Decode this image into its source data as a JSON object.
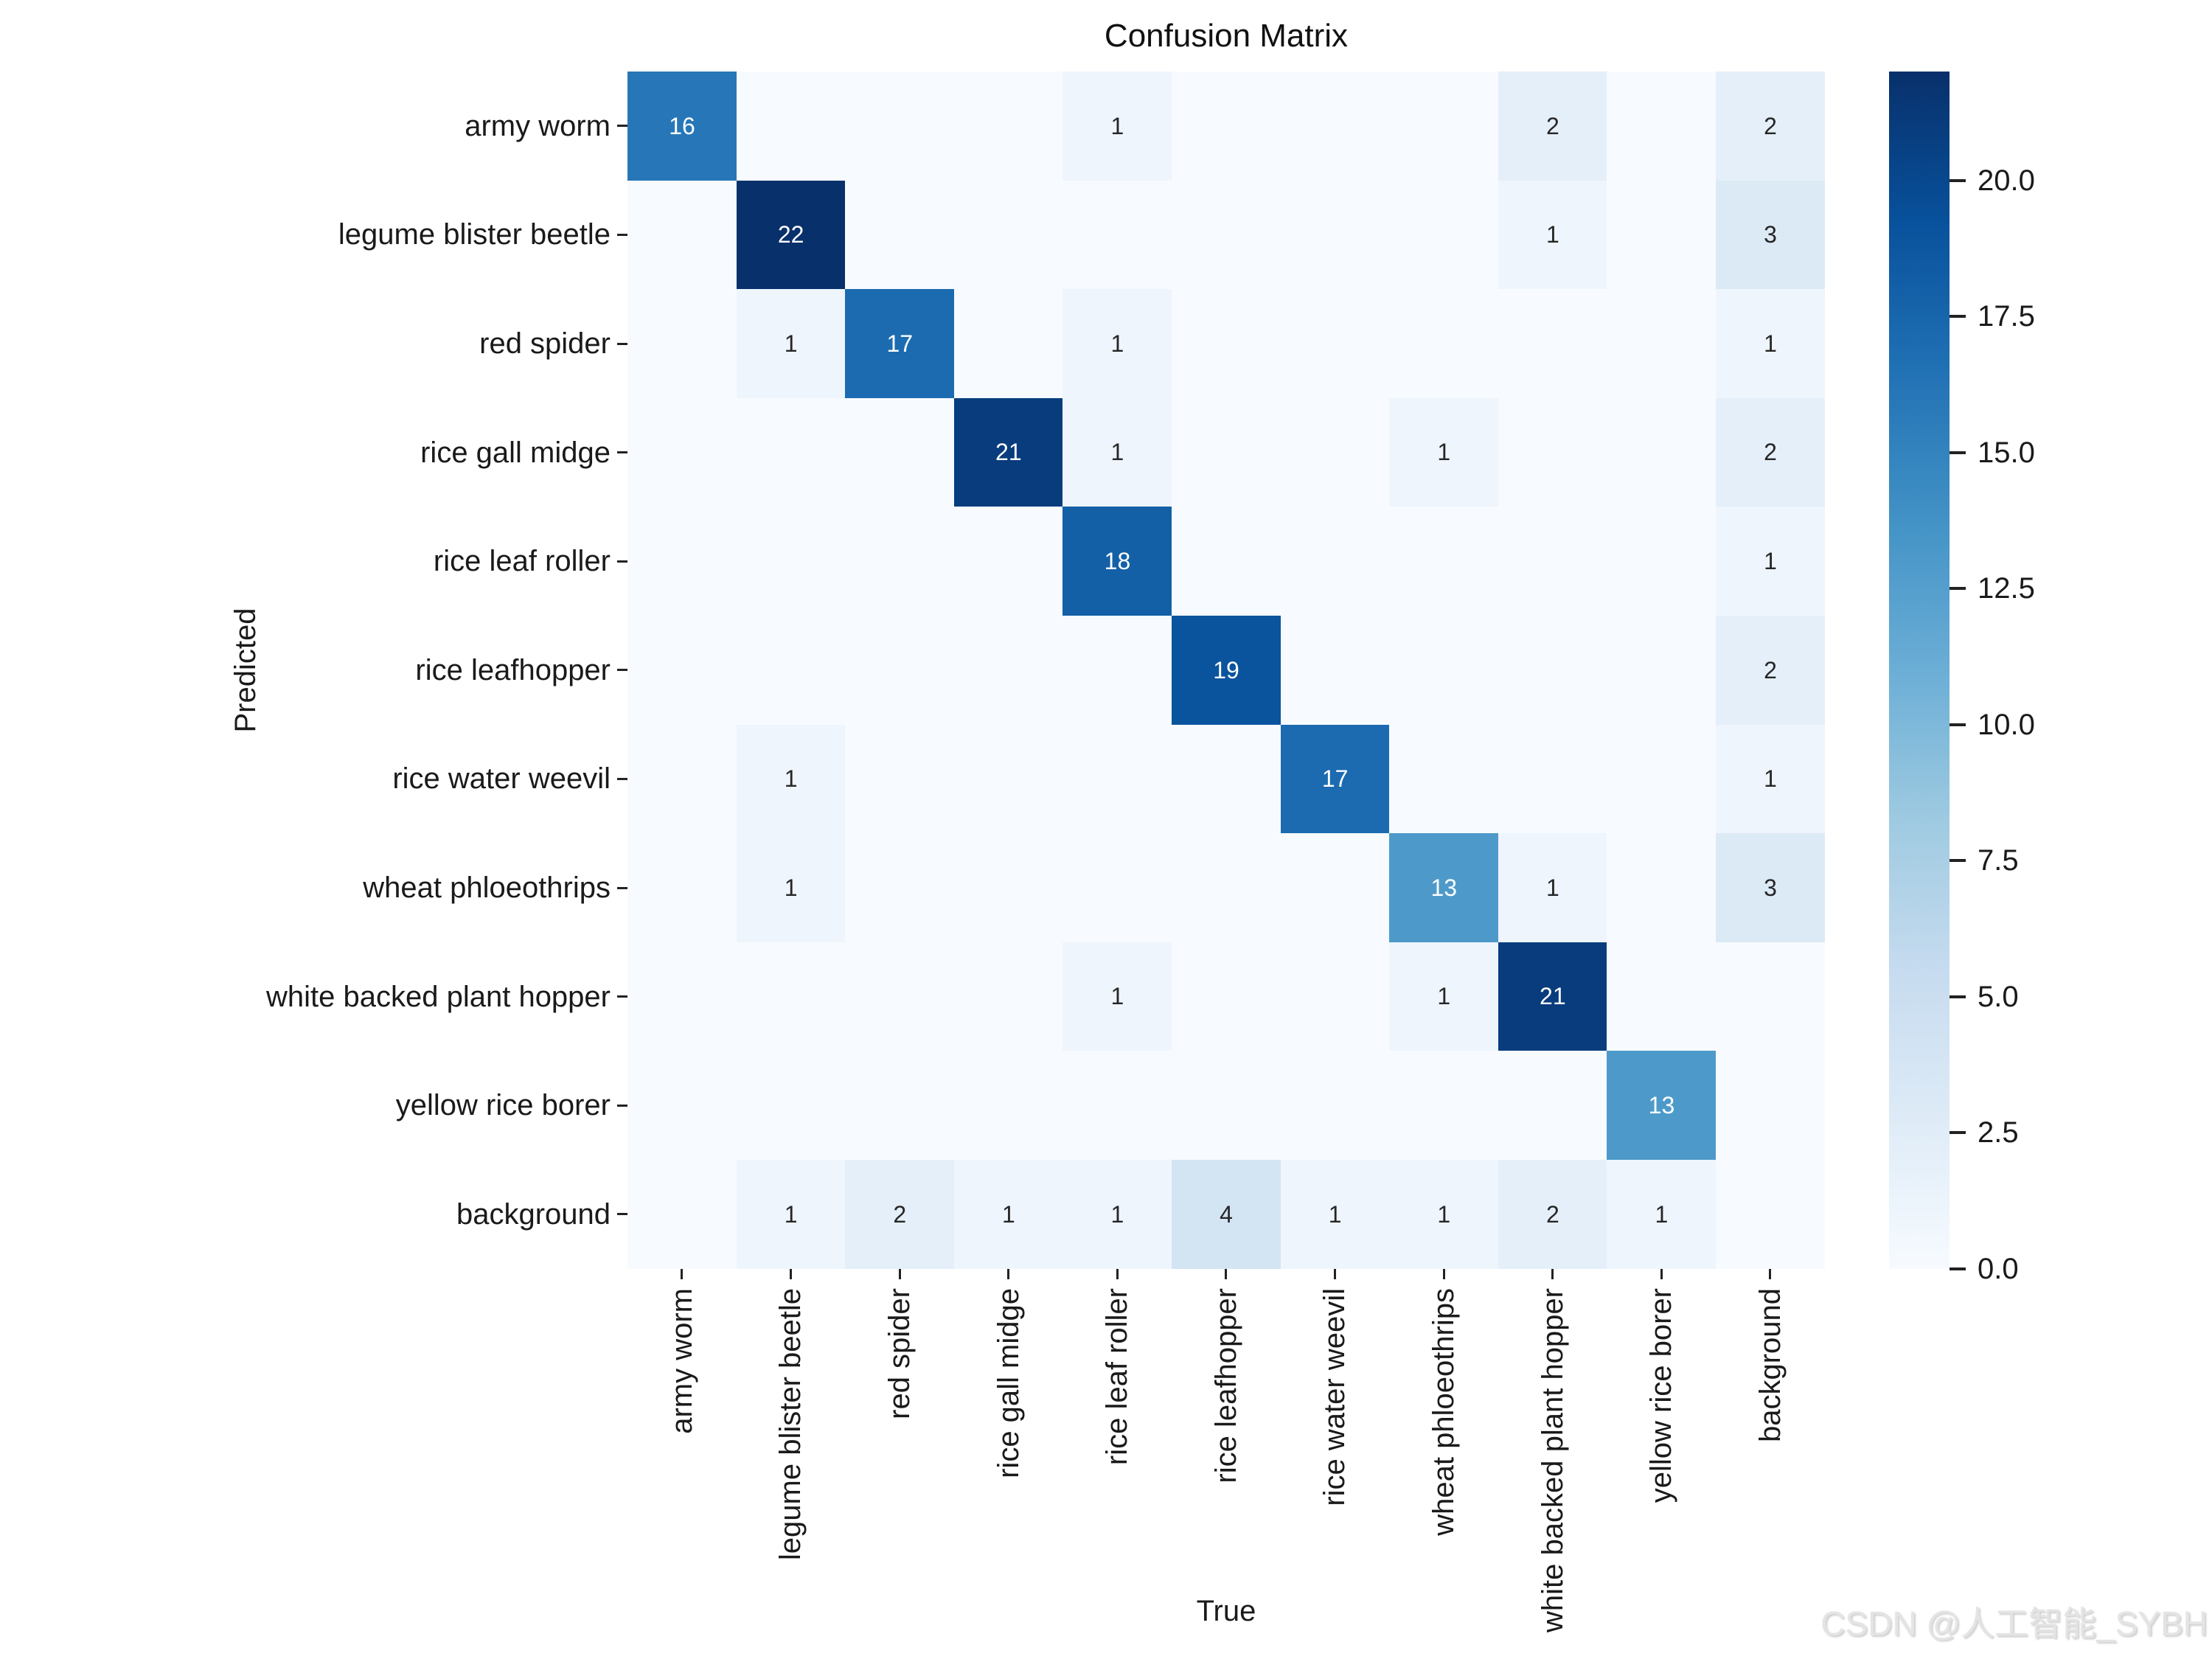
{
  "title": "Confusion Matrix",
  "watermark": "CSDN @人工智能_SYBH",
  "chart_data": {
    "type": "heatmap",
    "title": "Confusion Matrix",
    "xlabel": "True",
    "ylabel": "Predicted",
    "categories": [
      "army worm",
      "legume blister beetle",
      "red spider",
      "rice gall midge",
      "rice leaf roller",
      "rice leafhopper",
      "rice water weevil",
      "wheat phloeothrips",
      "white backed plant hopper",
      "yellow rice borer",
      "background"
    ],
    "matrix": [
      [
        16,
        0,
        0,
        0,
        1,
        0,
        0,
        0,
        2,
        0,
        2
      ],
      [
        0,
        22,
        0,
        0,
        0,
        0,
        0,
        0,
        1,
        0,
        3
      ],
      [
        0,
        1,
        17,
        0,
        1,
        0,
        0,
        0,
        0,
        0,
        1
      ],
      [
        0,
        0,
        0,
        21,
        1,
        0,
        0,
        1,
        0,
        0,
        2
      ],
      [
        0,
        0,
        0,
        0,
        18,
        0,
        0,
        0,
        0,
        0,
        1
      ],
      [
        0,
        0,
        0,
        0,
        0,
        19,
        0,
        0,
        0,
        0,
        2
      ],
      [
        0,
        1,
        0,
        0,
        0,
        0,
        17,
        0,
        0,
        0,
        1
      ],
      [
        0,
        1,
        0,
        0,
        0,
        0,
        0,
        13,
        1,
        0,
        3
      ],
      [
        0,
        0,
        0,
        0,
        1,
        0,
        0,
        1,
        21,
        0,
        0
      ],
      [
        0,
        0,
        0,
        0,
        0,
        0,
        0,
        0,
        0,
        13,
        0
      ],
      [
        0,
        1,
        2,
        1,
        1,
        4,
        1,
        1,
        2,
        1,
        0
      ]
    ],
    "show_zero_annotations": false,
    "vmin": 0,
    "vmax": 22,
    "colormap": "Blues",
    "colormap_stops": [
      "#f7fbff",
      "#deebf7",
      "#c6dbef",
      "#9ecae1",
      "#6baed6",
      "#4292c6",
      "#2171b5",
      "#08519c",
      "#08306b"
    ],
    "annotation_colors": {
      "dark": "#262626",
      "light": "#ffffff"
    },
    "colorbar_ticks": [
      0.0,
      2.5,
      5.0,
      7.5,
      10.0,
      12.5,
      15.0,
      17.5,
      20.0
    ],
    "colorbar_tick_labels": [
      "0.0",
      "2.5",
      "5.0",
      "7.5",
      "10.0",
      "12.5",
      "15.0",
      "17.5",
      "20.0"
    ],
    "legend_position": "right",
    "grid": false
  }
}
